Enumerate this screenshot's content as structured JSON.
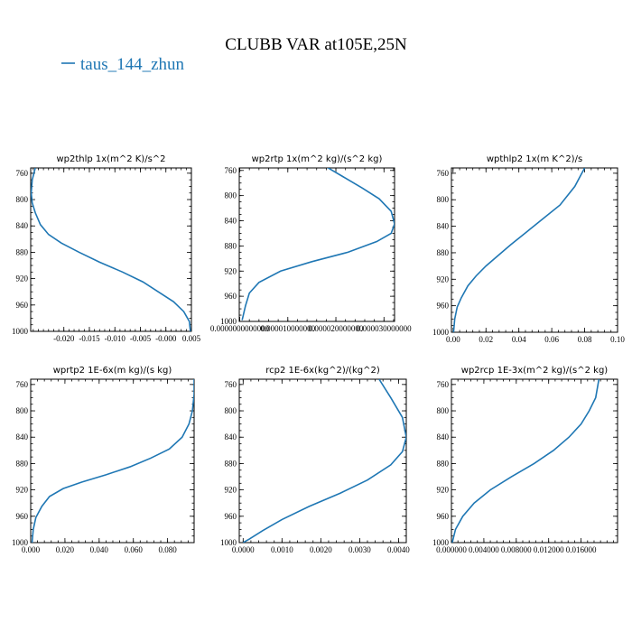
{
  "figure": {
    "title": "CLUBB VAR at105E,25N",
    "legend": {
      "label": "taus_144_zhun",
      "color": "#1f77b4"
    }
  },
  "chart_data": [
    {
      "type": "line",
      "title": "wp2thlp   1x(m^2 K)/s^2",
      "series": [
        {
          "name": "taus_144_zhun",
          "x": [
            -0.0256,
            -0.0262,
            -0.0264,
            -0.0262,
            -0.0256,
            -0.0246,
            -0.023,
            -0.0205,
            -0.017,
            -0.013,
            -0.0085,
            -0.0045,
            -0.0015,
            0.0015,
            0.0035,
            0.0046,
            0.0048
          ],
          "y": [
            752,
            770,
            790,
            805,
            820,
            838,
            853,
            866,
            880,
            895,
            910,
            925,
            940,
            955,
            970,
            985,
            1000
          ]
        }
      ],
      "ylim": [
        1000,
        752
      ],
      "xlim": [
        -0.0265,
        0.005
      ],
      "yticks": [
        760,
        800,
        840,
        880,
        920,
        960,
        1000
      ],
      "xticks": [
        -0.02,
        -0.015,
        -0.01,
        -0.005,
        0.0,
        0.005
      ],
      "xtick_labels": [
        "-0.020",
        "-0.015",
        "-0.010",
        "-0.005",
        "-0.000",
        "0.005"
      ]
    },
    {
      "type": "line",
      "title": "wp2rtp   1x(m^2 kg)/(s^2 kg)",
      "series": [
        {
          "name": "taus_144_zhun",
          "x": [
            1.75e-05,
            2.15e-05,
            2.55e-05,
            2.9e-05,
            3.15e-05,
            3.22e-05,
            3.15e-05,
            2.85e-05,
            2.25e-05,
            1.5e-05,
            8.5e-06,
            4e-06,
            2e-06,
            1.2e-06,
            5e-07
          ],
          "y": [
            752,
            770,
            788,
            805,
            825,
            845,
            860,
            873,
            890,
            905,
            920,
            938,
            955,
            975,
            998
          ]
        }
      ],
      "ylim": [
        1000,
        756
      ],
      "xlim": [
        -1e-07,
        3.22e-05
      ],
      "yticks": [
        760,
        800,
        840,
        880,
        920,
        960,
        1000
      ],
      "xticks": [
        0.0,
        1e-05,
        2e-05,
        3e-05
      ],
      "xtick_labels": [
        "0.0000000000000",
        "0.000010000000",
        "0.000020000000",
        "0.000030000000"
      ]
    },
    {
      "type": "line",
      "title": "wpthlp2   1x(m K^2)/s",
      "series": [
        {
          "name": "taus_144_zhun",
          "x": [
            0.08,
            0.074,
            0.065,
            0.055,
            0.045,
            0.035,
            0.027,
            0.02,
            0.014,
            0.009,
            0.005,
            0.0025,
            0.001,
            0.0003
          ],
          "y": [
            752,
            780,
            808,
            828,
            848,
            868,
            885,
            900,
            915,
            930,
            948,
            962,
            980,
            1000
          ]
        }
      ],
      "ylim": [
        1000,
        752
      ],
      "xlim": [
        -0.001,
        0.1
      ],
      "yticks": [
        760,
        800,
        840,
        880,
        920,
        960,
        1000
      ],
      "xticks": [
        0.0,
        0.02,
        0.04,
        0.06,
        0.08,
        0.1
      ],
      "xtick_labels": [
        "0.00",
        "0.02",
        "0.04",
        "0.06",
        "0.08",
        "0.10"
      ]
    },
    {
      "type": "line",
      "title": "wprtp2   1E-6x(m kg)/(s kg)",
      "series": [
        {
          "name": "taus_144_zhun",
          "x": [
            0.0955,
            0.0955,
            0.0945,
            0.0925,
            0.0885,
            0.081,
            0.07,
            0.058,
            0.044,
            0.03,
            0.019,
            0.011,
            0.0065,
            0.003,
            0.0015,
            0.0008
          ],
          "y": [
            752,
            775,
            800,
            820,
            840,
            858,
            872,
            885,
            897,
            908,
            918,
            930,
            945,
            962,
            980,
            1000
          ]
        }
      ],
      "ylim": [
        1000,
        752
      ],
      "xlim": [
        0.0,
        0.0955
      ],
      "yticks": [
        760,
        800,
        840,
        880,
        920,
        960,
        1000
      ],
      "xticks": [
        0.0,
        0.02,
        0.04,
        0.06,
        0.08
      ],
      "xtick_labels": [
        "0.000",
        "0.020",
        "0.040",
        "0.060",
        "0.080"
      ]
    },
    {
      "type": "line",
      "title": "rcp2   1E-6x(kg^2)/(kg^2)",
      "series": [
        {
          "name": "taus_144_zhun",
          "x": [
            0.0035,
            0.0038,
            0.0041,
            0.0042,
            0.0041,
            0.0038,
            0.0032,
            0.0025,
            0.0017,
            0.001,
            0.0005,
            0.00015,
            0.0
          ],
          "y": [
            752,
            780,
            810,
            840,
            862,
            882,
            905,
            925,
            945,
            965,
            982,
            995,
            1000
          ]
        }
      ],
      "ylim": [
        1000,
        752
      ],
      "xlim": [
        -0.0001,
        0.0042
      ],
      "yticks": [
        760,
        800,
        840,
        880,
        920,
        960,
        1000
      ],
      "xticks": [
        0.0,
        0.001,
        0.002,
        0.003,
        0.004
      ],
      "xtick_labels": [
        "0.0000",
        "0.0010",
        "0.0020",
        "0.0030",
        "0.0040"
      ]
    },
    {
      "type": "line",
      "title": "wp2rcp   1E-3x(m^2 kg)/(s^2 kg)",
      "series": [
        {
          "name": "taus_144_zhun",
          "x": [
            0.0182,
            0.0178,
            0.017,
            0.016,
            0.0145,
            0.0126,
            0.0102,
            0.0074,
            0.0048,
            0.0028,
            0.0014,
            0.0005,
            0.0001
          ],
          "y": [
            752,
            780,
            800,
            820,
            840,
            860,
            880,
            900,
            920,
            940,
            960,
            980,
            1000
          ]
        }
      ],
      "ylim": [
        1000,
        752
      ],
      "xlim": [
        0.0,
        0.0205
      ],
      "yticks": [
        760,
        800,
        840,
        880,
        920,
        960,
        1000
      ],
      "xticks": [
        0.0,
        0.004,
        0.008,
        0.012,
        0.016
      ],
      "xtick_labels": [
        "0.000000",
        "0.004000",
        "0.008000",
        "0.012000",
        "0.016000"
      ]
    }
  ]
}
